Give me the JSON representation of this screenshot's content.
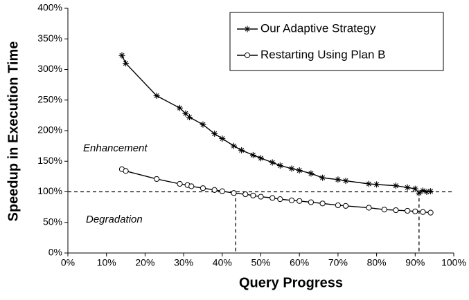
{
  "chart_data": {
    "type": "line",
    "x_label": "Query Progress",
    "y_label": "Speedup in Execution Time",
    "annotations": [
      "Enhancement",
      "Degradation"
    ],
    "xlim": [
      0,
      100
    ],
    "ylim": [
      0,
      400
    ],
    "xticks": [
      {
        "value": 0,
        "label": "0%"
      },
      {
        "value": 10,
        "label": "10%"
      },
      {
        "value": 20,
        "label": "20%"
      },
      {
        "value": 30,
        "label": "30%"
      },
      {
        "value": 40,
        "label": "40%"
      },
      {
        "value": 50,
        "label": "50%"
      },
      {
        "value": 60,
        "label": "60%"
      },
      {
        "value": 70,
        "label": "70%"
      },
      {
        "value": 80,
        "label": "80%"
      },
      {
        "value": 90,
        "label": "90%"
      },
      {
        "value": 100,
        "label": "100%"
      }
    ],
    "yticks": [
      {
        "value": 0,
        "label": "0%"
      },
      {
        "value": 50,
        "label": "50%"
      },
      {
        "value": 100,
        "label": "100%"
      },
      {
        "value": 150,
        "label": "150%"
      },
      {
        "value": 200,
        "label": "200%"
      },
      {
        "value": 250,
        "label": "250%"
      },
      {
        "value": 300,
        "label": "300%"
      },
      {
        "value": 350,
        "label": "350%"
      },
      {
        "value": 400,
        "label": "400%"
      }
    ],
    "reference_lines": {
      "y": 100,
      "x": [
        43.5,
        91
      ]
    },
    "legend": "upper right",
    "series": [
      {
        "name": "Our Adaptive Strategy",
        "color": "#000000",
        "marker": "asterisk",
        "x": [
          14,
          15,
          23,
          29,
          30.5,
          31.5,
          35,
          38,
          40,
          43,
          45,
          48,
          50,
          53,
          55,
          58,
          60,
          63,
          66,
          70,
          72,
          78,
          80,
          85,
          88,
          90,
          91,
          92,
          93,
          94
        ],
        "values": [
          323,
          310,
          257,
          237,
          228,
          222,
          210,
          195,
          187,
          175,
          168,
          160,
          155,
          148,
          143,
          138,
          135,
          130,
          123,
          120,
          118,
          113,
          112,
          110,
          107,
          105,
          98,
          102,
          100,
          101
        ]
      },
      {
        "name": "Restarting Using Plan B",
        "color": "#000000",
        "marker": "circle",
        "x": [
          14,
          15,
          23,
          29,
          31,
          32,
          35,
          38,
          40,
          43,
          46,
          48,
          50,
          53,
          55,
          58,
          60,
          63,
          66,
          70,
          72,
          78,
          82,
          85,
          88,
          90,
          92,
          94
        ],
        "values": [
          137,
          134,
          121,
          113,
          111,
          109,
          106,
          103,
          101,
          98,
          96,
          94,
          92,
          90,
          88,
          86,
          85,
          83,
          81,
          78,
          77,
          74,
          71,
          70,
          69,
          68,
          67,
          66
        ]
      }
    ]
  }
}
